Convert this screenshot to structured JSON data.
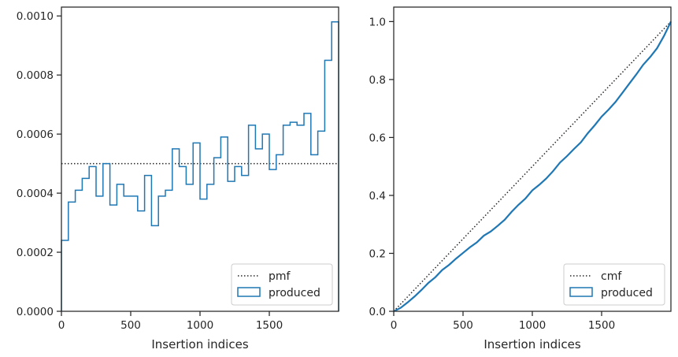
{
  "colors": {
    "produced": "#1f77b4",
    "reference": "#262626",
    "axes": "#262626",
    "legend_border": "#cccccc",
    "background": "#ffffff"
  },
  "chart_data": [
    {
      "type": "step",
      "xlabel": "Insertion indices",
      "ylabel": "",
      "xlim": [
        0,
        2000
      ],
      "ylim": [
        0,
        0.00103
      ],
      "xticks": [
        0,
        500,
        1000,
        1500
      ],
      "xtick_labels": [
        "0",
        "500",
        "1000",
        "1500"
      ],
      "yticks": [
        0,
        0.0002,
        0.0004,
        0.0006,
        0.0008,
        0.001
      ],
      "ytick_labels": [
        "0.0000",
        "0.0002",
        "0.0004",
        "0.0006",
        "0.0008",
        "0.0010"
      ],
      "grid": false,
      "legend": {
        "position": "bottom-right",
        "entries": [
          "pmf",
          "produced"
        ]
      },
      "reference": {
        "name": "pmf",
        "style": "dotted",
        "x": [
          0,
          2000
        ],
        "y": [
          0.0005,
          0.0005
        ]
      },
      "series": [
        {
          "name": "produced",
          "style": "step-outline",
          "bin_width": 50,
          "bin_edges_start": 0,
          "values": [
            0.00024,
            0.00037,
            0.00041,
            0.00045,
            0.00049,
            0.00039,
            0.0005,
            0.00036,
            0.00043,
            0.00039,
            0.00039,
            0.00034,
            0.00046,
            0.00029,
            0.00039,
            0.00041,
            0.00055,
            0.00049,
            0.00043,
            0.00057,
            0.00038,
            0.00043,
            0.00052,
            0.00059,
            0.00044,
            0.00049,
            0.00046,
            0.00063,
            0.00055,
            0.0006,
            0.00048,
            0.00053,
            0.00063,
            0.00064,
            0.00063,
            0.00067,
            0.00053,
            0.00061,
            0.00085,
            0.00098
          ]
        }
      ]
    },
    {
      "type": "line",
      "xlabel": "Insertion indices",
      "ylabel": "",
      "xlim": [
        0,
        2000
      ],
      "ylim": [
        0,
        1.05
      ],
      "xticks": [
        0,
        500,
        1000,
        1500
      ],
      "xtick_labels": [
        "0",
        "500",
        "1000",
        "1500"
      ],
      "yticks": [
        0,
        0.2,
        0.4,
        0.6,
        0.8,
        1.0
      ],
      "ytick_labels": [
        "0.0",
        "0.2",
        "0.4",
        "0.6",
        "0.8",
        "1.0"
      ],
      "grid": false,
      "legend": {
        "position": "bottom-right",
        "entries": [
          "cmf",
          "produced"
        ]
      },
      "reference": {
        "name": "cmf",
        "style": "dotted",
        "x": [
          0,
          2000
        ],
        "y": [
          0,
          1.0
        ]
      },
      "series": [
        {
          "name": "produced",
          "style": "step-outline",
          "x": [
            0,
            50,
            100,
            150,
            200,
            250,
            300,
            350,
            400,
            450,
            500,
            550,
            600,
            650,
            700,
            750,
            800,
            850,
            900,
            950,
            1000,
            1050,
            1100,
            1150,
            1200,
            1250,
            1300,
            1350,
            1400,
            1450,
            1500,
            1550,
            1600,
            1650,
            1700,
            1750,
            1800,
            1850,
            1900,
            1950,
            2000
          ],
          "y": [
            0,
            0.012,
            0.0305,
            0.051,
            0.0735,
            0.098,
            0.1175,
            0.1425,
            0.1605,
            0.182,
            0.2015,
            0.221,
            0.238,
            0.261,
            0.2755,
            0.295,
            0.3155,
            0.343,
            0.3675,
            0.389,
            0.4175,
            0.4365,
            0.458,
            0.484,
            0.5135,
            0.5355,
            0.56,
            0.583,
            0.6145,
            0.642,
            0.672,
            0.696,
            0.7225,
            0.754,
            0.786,
            0.8175,
            0.851,
            0.8775,
            0.908,
            0.9505,
            1.0
          ]
        }
      ]
    }
  ]
}
